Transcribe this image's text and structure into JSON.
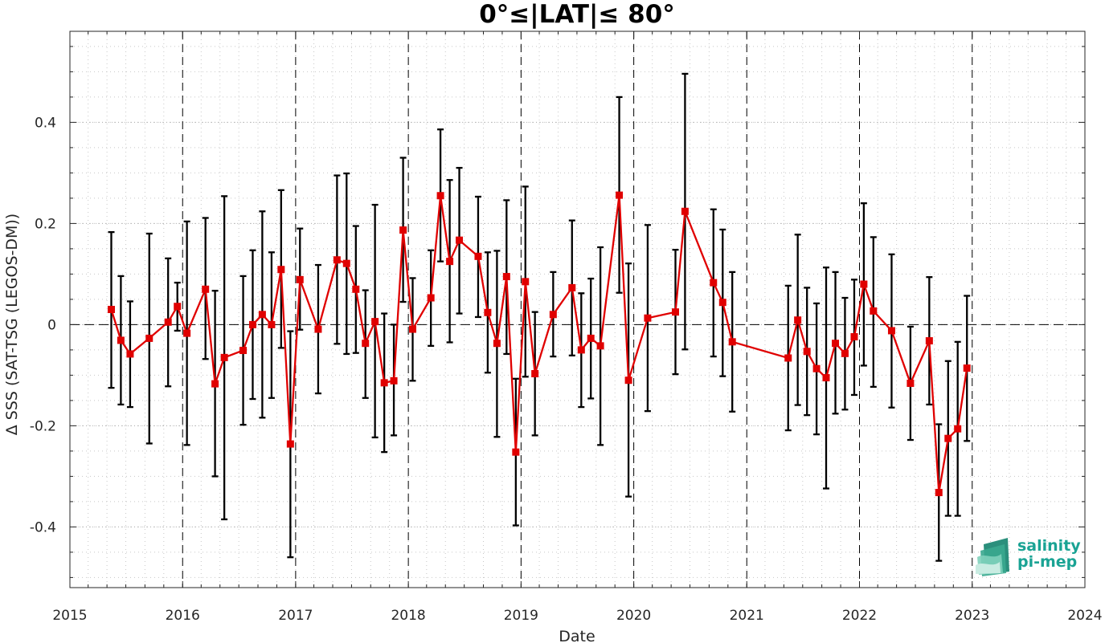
{
  "chart_data": {
    "type": "line",
    "title": "0°≤|LAT|≤ 80°",
    "xlabel": "Date",
    "ylabel": "Δ SSS (SAT-TSG (LEGOS-DM))",
    "xlim": [
      "2015-01-01",
      "2024-01-01"
    ],
    "ylim": [
      -0.52,
      0.58
    ],
    "x_ticks": [
      "2015",
      "2016",
      "2017",
      "2018",
      "2019",
      "2020",
      "2021",
      "2022",
      "2023",
      "2024"
    ],
    "y_ticks": [
      -0.4,
      -0.2,
      0,
      0.2,
      0.4
    ],
    "y_tick_labels": [
      "-0.4",
      "-0.2",
      "0",
      "0.2",
      "0.4"
    ],
    "grid": "dotted minor and major",
    "year_markers": "dashed vertical lines at each January 1",
    "zero_line": "dashed horizontal line at 0",
    "series": [
      {
        "color": "#e00000",
        "marker": "square",
        "errorbar_color": "#000000",
        "points": [
          {
            "x": "2015-05-15",
            "y": 0.03,
            "lo": -0.125,
            "hi": 0.183
          },
          {
            "x": "2015-06-15",
            "y": -0.031,
            "lo": -0.158,
            "hi": 0.096
          },
          {
            "x": "2015-07-15",
            "y": -0.058,
            "lo": -0.163,
            "hi": 0.046
          },
          {
            "x": "2015-09-15",
            "y": -0.027,
            "lo": -0.235,
            "hi": 0.18
          },
          {
            "x": "2015-11-15",
            "y": 0.005,
            "lo": -0.122,
            "hi": 0.131
          },
          {
            "x": "2015-12-15",
            "y": 0.036,
            "lo": -0.012,
            "hi": 0.083
          },
          {
            "x": "2016-01-15",
            "y": -0.017,
            "lo": -0.238,
            "hi": 0.204
          },
          {
            "x": "2016-03-15",
            "y": 0.07,
            "lo": -0.068,
            "hi": 0.211
          },
          {
            "x": "2016-04-15",
            "y": -0.117,
            "lo": -0.3,
            "hi": 0.067
          },
          {
            "x": "2016-05-15",
            "y": -0.065,
            "lo": -0.385,
            "hi": 0.254
          },
          {
            "x": "2016-07-15",
            "y": -0.051,
            "lo": -0.198,
            "hi": 0.096
          },
          {
            "x": "2016-08-15",
            "y": -0.0,
            "lo": -0.147,
            "hi": 0.147
          },
          {
            "x": "2016-09-15",
            "y": 0.02,
            "lo": -0.184,
            "hi": 0.224
          },
          {
            "x": "2016-10-15",
            "y": 0.0,
            "lo": -0.145,
            "hi": 0.143
          },
          {
            "x": "2016-11-15",
            "y": 0.109,
            "lo": -0.046,
            "hi": 0.266
          },
          {
            "x": "2016-12-15",
            "y": -0.236,
            "lo": -0.46,
            "hi": -0.013
          },
          {
            "x": "2017-01-15",
            "y": 0.089,
            "lo": -0.01,
            "hi": 0.19
          },
          {
            "x": "2017-03-15",
            "y": -0.009,
            "lo": -0.136,
            "hi": 0.118
          },
          {
            "x": "2017-05-15",
            "y": 0.128,
            "lo": -0.038,
            "hi": 0.295
          },
          {
            "x": "2017-06-15",
            "y": 0.121,
            "lo": -0.058,
            "hi": 0.299
          },
          {
            "x": "2017-07-15",
            "y": 0.07,
            "lo": -0.056,
            "hi": 0.195
          },
          {
            "x": "2017-08-15",
            "y": -0.037,
            "lo": -0.145,
            "hi": 0.068
          },
          {
            "x": "2017-09-15",
            "y": 0.006,
            "lo": -0.223,
            "hi": 0.237
          },
          {
            "x": "2017-10-15",
            "y": -0.115,
            "lo": -0.252,
            "hi": 0.022
          },
          {
            "x": "2017-11-15",
            "y": -0.111,
            "lo": -0.219,
            "hi": 0.0
          },
          {
            "x": "2017-12-15",
            "y": 0.187,
            "lo": 0.045,
            "hi": 0.33
          },
          {
            "x": "2018-01-15",
            "y": -0.009,
            "lo": -0.111,
            "hi": 0.092
          },
          {
            "x": "2018-03-15",
            "y": 0.053,
            "lo": -0.042,
            "hi": 0.147
          },
          {
            "x": "2018-04-15",
            "y": 0.255,
            "lo": 0.125,
            "hi": 0.386
          },
          {
            "x": "2018-05-15",
            "y": 0.125,
            "lo": -0.035,
            "hi": 0.286
          },
          {
            "x": "2018-06-15",
            "y": 0.167,
            "lo": 0.022,
            "hi": 0.31
          },
          {
            "x": "2018-08-15",
            "y": 0.135,
            "lo": 0.015,
            "hi": 0.253
          },
          {
            "x": "2018-09-15",
            "y": 0.024,
            "lo": -0.095,
            "hi": 0.143
          },
          {
            "x": "2018-10-15",
            "y": -0.037,
            "lo": -0.222,
            "hi": 0.146
          },
          {
            "x": "2018-11-15",
            "y": 0.095,
            "lo": -0.058,
            "hi": 0.246
          },
          {
            "x": "2018-12-15",
            "y": -0.252,
            "lo": -0.397,
            "hi": -0.107
          },
          {
            "x": "2019-01-15",
            "y": 0.085,
            "lo": -0.103,
            "hi": 0.273
          },
          {
            "x": "2019-02-15",
            "y": -0.097,
            "lo": -0.219,
            "hi": 0.025
          },
          {
            "x": "2019-04-15",
            "y": 0.02,
            "lo": -0.063,
            "hi": 0.104
          },
          {
            "x": "2019-06-15",
            "y": 0.073,
            "lo": -0.061,
            "hi": 0.206
          },
          {
            "x": "2019-07-15",
            "y": -0.05,
            "lo": -0.163,
            "hi": 0.062
          },
          {
            "x": "2019-08-15",
            "y": -0.027,
            "lo": -0.146,
            "hi": 0.091
          },
          {
            "x": "2019-09-15",
            "y": -0.042,
            "lo": -0.238,
            "hi": 0.153
          },
          {
            "x": "2019-11-15",
            "y": 0.256,
            "lo": 0.063,
            "hi": 0.45
          },
          {
            "x": "2019-12-15",
            "y": -0.11,
            "lo": -0.34,
            "hi": 0.121
          },
          {
            "x": "2020-02-15",
            "y": 0.013,
            "lo": -0.171,
            "hi": 0.197
          },
          {
            "x": "2020-05-15",
            "y": 0.025,
            "lo": -0.098,
            "hi": 0.148
          },
          {
            "x": "2020-06-15",
            "y": 0.224,
            "lo": -0.049,
            "hi": 0.496
          },
          {
            "x": "2020-09-15",
            "y": 0.083,
            "lo": -0.063,
            "hi": 0.228
          },
          {
            "x": "2020-10-15",
            "y": 0.044,
            "lo": -0.102,
            "hi": 0.188
          },
          {
            "x": "2020-11-15",
            "y": -0.034,
            "lo": -0.172,
            "hi": 0.104
          },
          {
            "x": "2021-05-15",
            "y": -0.066,
            "lo": -0.209,
            "hi": 0.077
          },
          {
            "x": "2021-06-15",
            "y": 0.009,
            "lo": -0.159,
            "hi": 0.178
          },
          {
            "x": "2021-07-15",
            "y": -0.053,
            "lo": -0.179,
            "hi": 0.073
          },
          {
            "x": "2021-08-15",
            "y": -0.087,
            "lo": -0.217,
            "hi": 0.042
          },
          {
            "x": "2021-09-15",
            "y": -0.105,
            "lo": -0.324,
            "hi": 0.113
          },
          {
            "x": "2021-10-15",
            "y": -0.037,
            "lo": -0.176,
            "hi": 0.104
          },
          {
            "x": "2021-11-15",
            "y": -0.057,
            "lo": -0.168,
            "hi": 0.053
          },
          {
            "x": "2021-12-15",
            "y": -0.024,
            "lo": -0.139,
            "hi": 0.089
          },
          {
            "x": "2022-01-15",
            "y": 0.08,
            "lo": -0.081,
            "hi": 0.24
          },
          {
            "x": "2022-02-15",
            "y": 0.027,
            "lo": -0.123,
            "hi": 0.173
          },
          {
            "x": "2022-04-15",
            "y": -0.012,
            "lo": -0.164,
            "hi": 0.139
          },
          {
            "x": "2022-06-15",
            "y": -0.116,
            "lo": -0.228,
            "hi": -0.004
          },
          {
            "x": "2022-08-15",
            "y": -0.032,
            "lo": -0.158,
            "hi": 0.094
          },
          {
            "x": "2022-09-15",
            "y": -0.332,
            "lo": -0.467,
            "hi": -0.197
          },
          {
            "x": "2022-10-15",
            "y": -0.225,
            "lo": -0.378,
            "hi": -0.072
          },
          {
            "x": "2022-11-15",
            "y": -0.206,
            "lo": -0.378,
            "hi": -0.034
          },
          {
            "x": "2022-12-15",
            "y": -0.086,
            "lo": -0.23,
            "hi": 0.057
          }
        ]
      }
    ]
  },
  "logo": {
    "line1": "salinity",
    "line2": "pi-mep",
    "color": "#1aa394"
  }
}
